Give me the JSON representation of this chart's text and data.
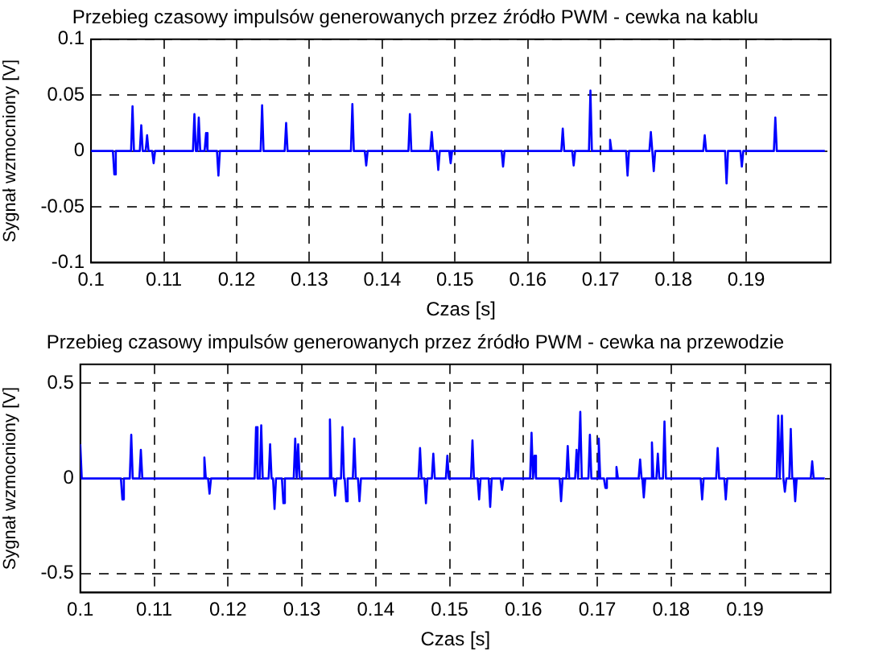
{
  "chart_data": [
    {
      "type": "line",
      "title": "Przebieg czasowy impulsów generowanych przez źródło PWM - cewka na kablu",
      "xlabel": "Czas [s]",
      "ylabel": "Sygnał wzmocniony [V]",
      "series": [
        {
          "color": "#0000ff",
          "x": [
            0.1,
            0.103,
            0.1032,
            0.1034,
            0.1055,
            0.1057,
            0.1059,
            0.1067,
            0.1069,
            0.1071,
            0.1075,
            0.1077,
            0.1079,
            0.1084,
            0.1086,
            0.1088,
            0.114,
            0.1142,
            0.1144,
            0.1146,
            0.1148,
            0.115,
            0.1156,
            0.1158,
            0.116,
            0.1173,
            0.1175,
            0.1177,
            0.1233,
            0.1235,
            0.1237,
            0.1266,
            0.1268,
            0.127,
            0.1357,
            0.1359,
            0.1361,
            0.1376,
            0.1378,
            0.138,
            0.1436,
            0.1438,
            0.144,
            0.1466,
            0.1468,
            0.147,
            0.1475,
            0.1477,
            0.1479,
            0.1492,
            0.1494,
            0.1496,
            0.1564,
            0.1566,
            0.1568,
            0.1646,
            0.1648,
            0.165,
            0.1661,
            0.1663,
            0.1665,
            0.1684,
            0.1686,
            0.1688,
            0.1711,
            0.1713,
            0.1715,
            0.1735,
            0.1737,
            0.1739,
            0.1767,
            0.1769,
            0.1771,
            0.1771,
            0.1773,
            0.1775,
            0.1841,
            0.1843,
            0.1845,
            0.1871,
            0.1873,
            0.1875,
            0.1892,
            0.1894,
            0.1896,
            0.1938,
            0.194,
            0.1942,
            0.2008
          ],
          "values": [
            0,
            0,
            -0.021,
            0,
            0,
            0.04,
            0,
            0,
            0.023,
            0,
            0,
            0.014,
            0,
            0,
            -0.011,
            0,
            0,
            0.033,
            0,
            0,
            0.03,
            0,
            0,
            0.016,
            0,
            0,
            -0.022,
            0,
            0,
            0.041,
            0,
            0,
            0.025,
            0,
            0,
            0.042,
            0,
            0,
            -0.013,
            0,
            0,
            0.033,
            0,
            0,
            0.017,
            0,
            0,
            -0.017,
            0,
            0,
            -0.011,
            0,
            0,
            -0.014,
            0,
            0,
            0.02,
            0,
            0,
            -0.013,
            0,
            0,
            0.054,
            0,
            0,
            0.01,
            0,
            0,
            -0.022,
            0,
            0,
            0.017,
            0,
            0,
            -0.018,
            0,
            0,
            0.014,
            0,
            0,
            -0.029,
            0,
            0,
            -0.014,
            0,
            0,
            0.03,
            0,
            0
          ]
        }
      ],
      "xlim": [
        0.1,
        0.2016
      ],
      "xticks": [
        0.1,
        0.11,
        0.12,
        0.13,
        0.14,
        0.15,
        0.16,
        0.17,
        0.18,
        0.19
      ],
      "ylim": [
        -0.1,
        0.1
      ],
      "yticks": [
        -0.1,
        -0.05,
        0,
        0.05,
        0.1
      ],
      "grid": true,
      "legend": false,
      "marker": "none"
    },
    {
      "type": "line",
      "title": "Przebieg czasowy impulsów generowanych przez źródło PWM - cewka na przewodzie",
      "xlabel": "Czas [s]",
      "ylabel": "Sygnał wzmocniony [V]",
      "series": [
        {
          "color": "#0000ff",
          "x": [
            0.1,
            0.1002,
            0.1055,
            0.1057,
            0.1059,
            0.1067,
            0.1069,
            0.1071,
            0.108,
            0.1082,
            0.1084,
            0.1166,
            0.1168,
            0.117,
            0.1173,
            0.1175,
            0.1177,
            0.1236,
            0.1238,
            0.124,
            0.1243,
            0.1245,
            0.1247,
            0.1255,
            0.1257,
            0.1259,
            0.1261,
            0.1263,
            0.1265,
            0.1273,
            0.1275,
            0.1277,
            0.1289,
            0.1291,
            0.1293,
            0.1293,
            0.1295,
            0.1297,
            0.1336,
            0.1338,
            0.134,
            0.1343,
            0.1345,
            0.1347,
            0.1353,
            0.1355,
            0.1357,
            0.1358,
            0.136,
            0.1362,
            0.1369,
            0.1371,
            0.1373,
            0.1376,
            0.1378,
            0.138,
            0.1458,
            0.146,
            0.1462,
            0.1466,
            0.1468,
            0.147,
            0.1476,
            0.1478,
            0.148,
            0.1495,
            0.1497,
            0.1499,
            0.1529,
            0.1531,
            0.1533,
            0.1538,
            0.154,
            0.1542,
            0.1553,
            0.1555,
            0.1557,
            0.1569,
            0.1571,
            0.1573,
            0.1609,
            0.1611,
            0.1613,
            0.1613,
            0.1615,
            0.1617,
            0.1649,
            0.1651,
            0.1653,
            0.1658,
            0.166,
            0.1662,
            0.167,
            0.1672,
            0.1674,
            0.1675,
            0.1677,
            0.1679,
            0.1688,
            0.169,
            0.1692,
            0.17,
            0.1702,
            0.1704,
            0.1709,
            0.1711,
            0.1713,
            0.1724,
            0.1726,
            0.1728,
            0.1756,
            0.1758,
            0.176,
            0.1761,
            0.1763,
            0.1765,
            0.1772,
            0.1774,
            0.1776,
            0.178,
            0.1782,
            0.1784,
            0.1789,
            0.1791,
            0.1793,
            0.184,
            0.1842,
            0.1844,
            0.1861,
            0.1863,
            0.1865,
            0.1872,
            0.1874,
            0.1876,
            0.1943,
            0.1945,
            0.1947,
            0.1948,
            0.195,
            0.1952,
            0.1952,
            0.1954,
            0.1956,
            0.196,
            0.1962,
            0.1964,
            0.1966,
            0.1968,
            0.197,
            0.1989,
            0.1991,
            0.1993,
            0.2008
          ],
          "values": [
            0.18,
            0,
            0,
            -0.11,
            0,
            0,
            0.23,
            0,
            0,
            0.15,
            0,
            0,
            0.11,
            0,
            0,
            -0.08,
            0,
            0,
            0.27,
            0,
            0,
            0.28,
            0,
            0,
            0.18,
            0,
            0,
            -0.16,
            0,
            0,
            -0.13,
            0,
            0,
            0.21,
            0,
            0,
            0.18,
            0,
            0,
            0.31,
            0,
            0,
            -0.09,
            0,
            0,
            0.27,
            0,
            0,
            -0.12,
            0,
            0,
            0.21,
            0,
            0,
            -0.12,
            0,
            0,
            0.16,
            0,
            0,
            -0.13,
            0,
            0,
            0.13,
            0,
            0,
            0.12,
            0,
            0,
            0.2,
            0,
            0,
            -0.11,
            0,
            0,
            -0.15,
            0,
            0,
            -0.06,
            0,
            0,
            0.24,
            0,
            0,
            0.12,
            0,
            0,
            -0.12,
            0,
            0,
            0.17,
            0,
            0,
            0.15,
            0,
            0,
            0.35,
            0,
            0,
            0.23,
            0,
            0,
            0.21,
            0,
            0,
            -0.05,
            0,
            0,
            0.06,
            0,
            0,
            0.1,
            0,
            0,
            -0.1,
            0,
            0,
            0.19,
            0,
            0,
            0.13,
            0,
            0,
            0.3,
            0,
            0,
            -0.11,
            0,
            0,
            0.16,
            0,
            0,
            -0.11,
            0,
            0,
            0.33,
            0,
            0,
            0.33,
            0,
            0,
            -0.07,
            0,
            0,
            0.26,
            0,
            0,
            -0.12,
            0,
            0,
            0.09,
            0,
            0
          ]
        }
      ],
      "xlim": [
        0.1,
        0.2016
      ],
      "xticks": [
        0.1,
        0.11,
        0.12,
        0.13,
        0.14,
        0.15,
        0.16,
        0.17,
        0.18,
        0.19
      ],
      "ylim": [
        -0.6,
        0.6
      ],
      "yticks": [
        -0.5,
        0,
        0.5
      ],
      "grid": true,
      "legend": false,
      "marker": "none"
    }
  ]
}
